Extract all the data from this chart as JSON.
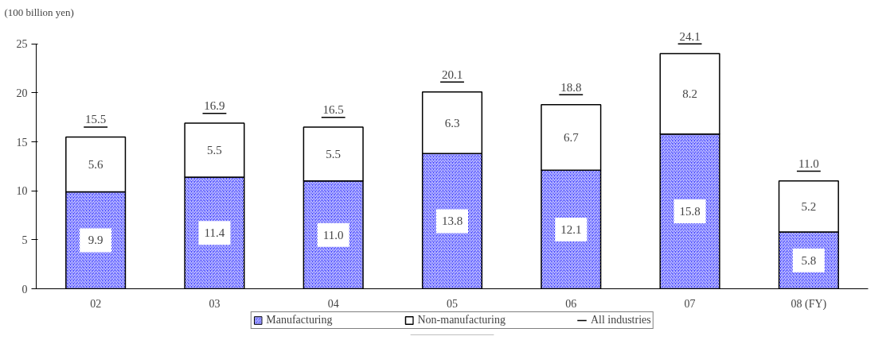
{
  "chart_data": {
    "type": "bar",
    "stacked": true,
    "ylabel": "(100 billion yen)",
    "categories": [
      "02",
      "03",
      "04",
      "05",
      "06",
      "07",
      "08 (FY)"
    ],
    "series": [
      {
        "name": "Manufacturing",
        "color": "#3333ff",
        "values": [
          9.9,
          11.4,
          11.0,
          13.8,
          12.1,
          15.8,
          5.8
        ],
        "value_labels": [
          "9.9",
          "11.4",
          "11.0",
          "13.8",
          "12.1",
          "15.8",
          "5.8"
        ]
      },
      {
        "name": "Non-manufacturing",
        "color": "#ffffff",
        "values": [
          5.6,
          5.5,
          5.5,
          6.3,
          6.7,
          8.2,
          5.2
        ],
        "value_labels": [
          "5.6",
          "5.5",
          "5.5",
          "6.3",
          "6.7",
          "8.2",
          "5.2"
        ]
      }
    ],
    "totals": [
      "15.5",
      "16.9",
      "16.5",
      "20.1",
      "18.8",
      "24.1",
      "11.0"
    ],
    "annotations": [
      "All industries"
    ],
    "data_labels": true,
    "ylim": [
      0,
      25
    ],
    "yticks": [
      0,
      5,
      10,
      15,
      20,
      25
    ],
    "grid": false,
    "legend": "bottom"
  }
}
